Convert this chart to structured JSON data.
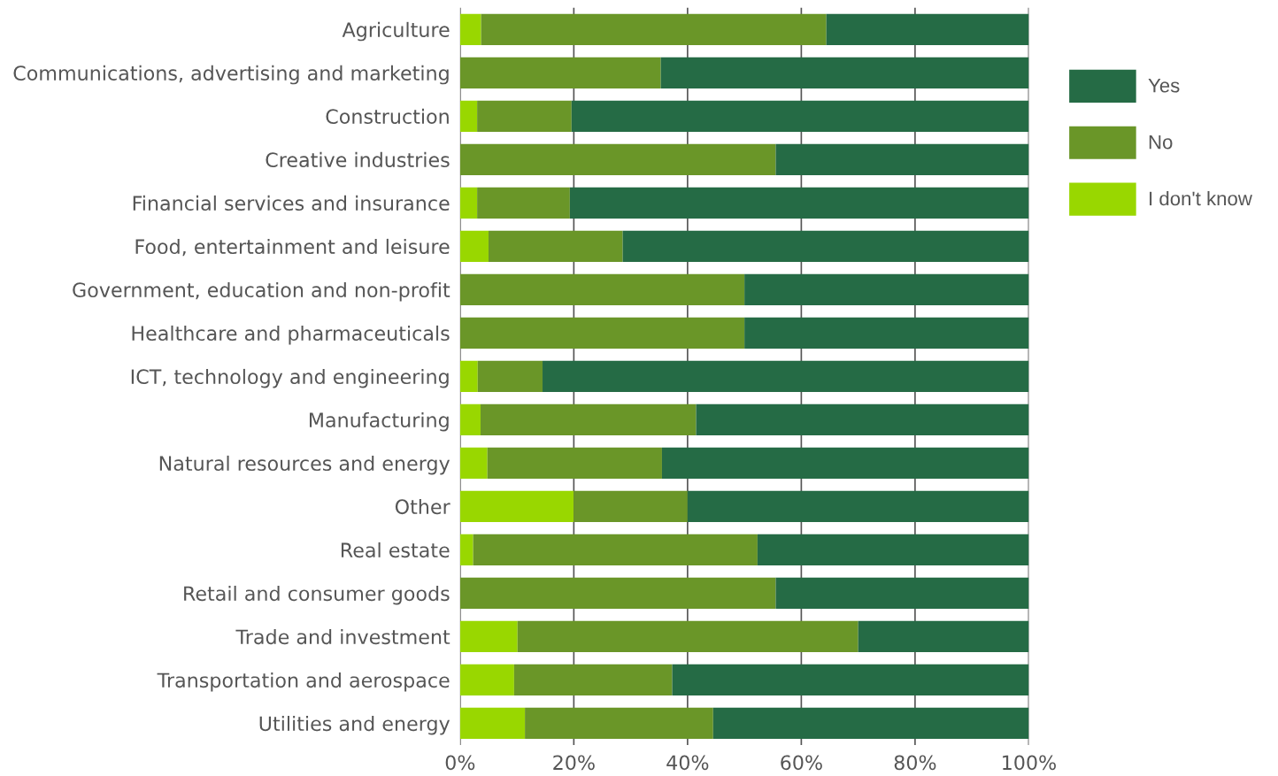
{
  "chart_data": {
    "type": "bar",
    "orientation": "horizontal",
    "stacked": true,
    "categories": [
      "Agriculture",
      "Communications, advertising and marketing",
      "Construction",
      "Creative industries",
      "Financial services and insurance",
      "Food, entertainment and leisure",
      "Government, education and non-profit",
      "Healthcare and pharmaceuticals",
      "ICT, technology and engineering",
      "Manufacturing",
      "Natural resources and energy",
      "Other",
      "Real estate",
      "Retail and consumer goods",
      "Trade and investment",
      "Transportation and aerospace",
      "Utilities and energy"
    ],
    "series": [
      {
        "name": "I don't know",
        "color": "#99d700",
        "values": [
          3.7,
          0,
          3.0,
          0,
          3.0,
          5.0,
          0,
          0,
          3.1,
          3.6,
          4.8,
          20,
          2.3,
          0,
          10.1,
          9.5,
          11.4
        ]
      },
      {
        "name": "No",
        "color": "#6a9628",
        "values": [
          60.7,
          35.3,
          16.6,
          55.5,
          16.3,
          23.6,
          50,
          50,
          11.4,
          37.9,
          30.7,
          20,
          50,
          55.5,
          59.9,
          27.8,
          33.1
        ]
      },
      {
        "name": "Yes",
        "color": "#256b45",
        "values": [
          35.6,
          64.7,
          80.4,
          44.5,
          80.7,
          71.4,
          50,
          50,
          85.5,
          58.5,
          64.5,
          60,
          47.7,
          44.5,
          30,
          62.7,
          55.5
        ]
      }
    ],
    "xlim": [
      0,
      100
    ],
    "xticks": [
      {
        "value": 0,
        "label": "0%"
      },
      {
        "value": 20,
        "label": "20%"
      },
      {
        "value": 40,
        "label": "40%"
      },
      {
        "value": 60,
        "label": "60%"
      },
      {
        "value": 80,
        "label": "80%"
      },
      {
        "value": 100,
        "label": "100%"
      }
    ],
    "grid": "x",
    "legend": "right"
  }
}
